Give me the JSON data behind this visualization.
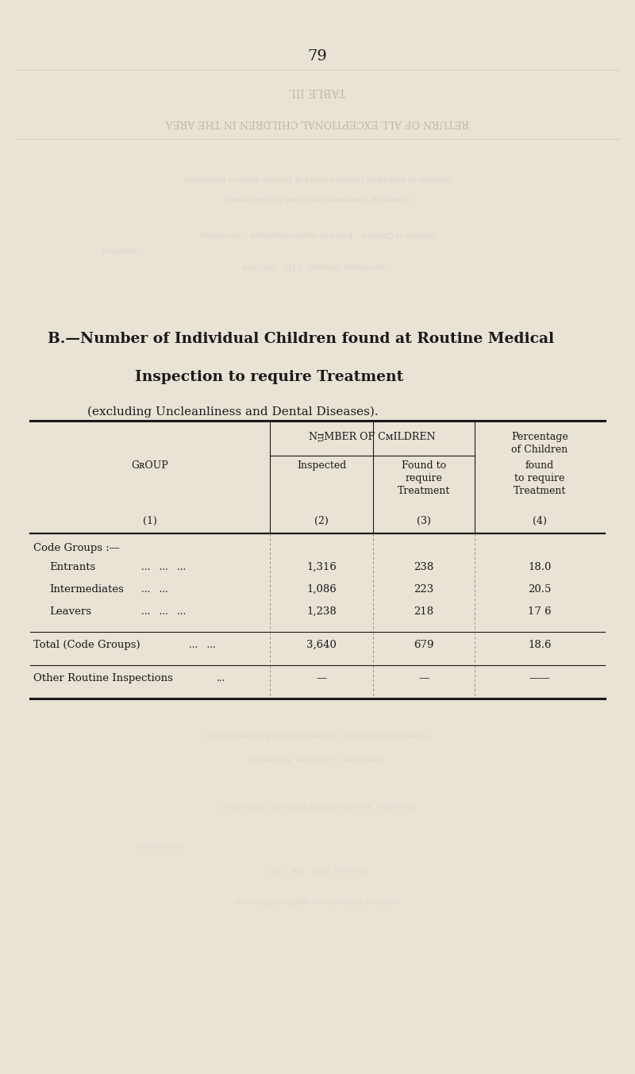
{
  "page_number": "79",
  "title_line1": "B.—Number of Individual Children found at Routine Medical",
  "title_line2": "Inspection to require Treatment",
  "title_line3": "(excluding Uncleanliness and Dental Diseases).",
  "background_color": "#e8e3d5",
  "text_color": "#1a1a1a",
  "watermark_line1": "TABLE III.",
  "watermark_line2": "RETURN OF ALL EXCEPTIONAL CHILDREN IN THE AREA",
  "header_group": "Group",
  "header_num_of_children": "Number of Children",
  "header_inspected": "Inspected",
  "header_found": "Found to\nrequire\nTreatment",
  "header_percentage_top": "Percentage\nof Children",
  "header_percentage_bot": "found\nto require\nTreatment",
  "header_col1": "(1)",
  "header_col2": "(2)",
  "header_col3": "(3)",
  "header_col4": "(4)",
  "section_label": "Code Groups :—",
  "rows": [
    {
      "group": "Entrants",
      "ellipsis": "...   ...   ...",
      "inspected": "1,316",
      "found": "238",
      "pct": "18.0"
    },
    {
      "group": "Intermediates",
      "ellipsis": "...   ...",
      "inspected": "1,086",
      "found": "223",
      "pct": "20.5"
    },
    {
      "group": "Leavers",
      "ellipsis": "...   ...   ...",
      "inspected": "1,238",
      "found": "218",
      "pct": "17 6"
    }
  ],
  "total_row": {
    "group": "Total (Code Groups)",
    "ellipsis": "...   ...",
    "inspected": "3,640",
    "found": "679",
    "pct": "18.6"
  },
  "other_row": {
    "group": "Other Routine Inspections",
    "ellipsis": "...",
    "inspected": "—",
    "found": "—",
    "pct": "——"
  }
}
